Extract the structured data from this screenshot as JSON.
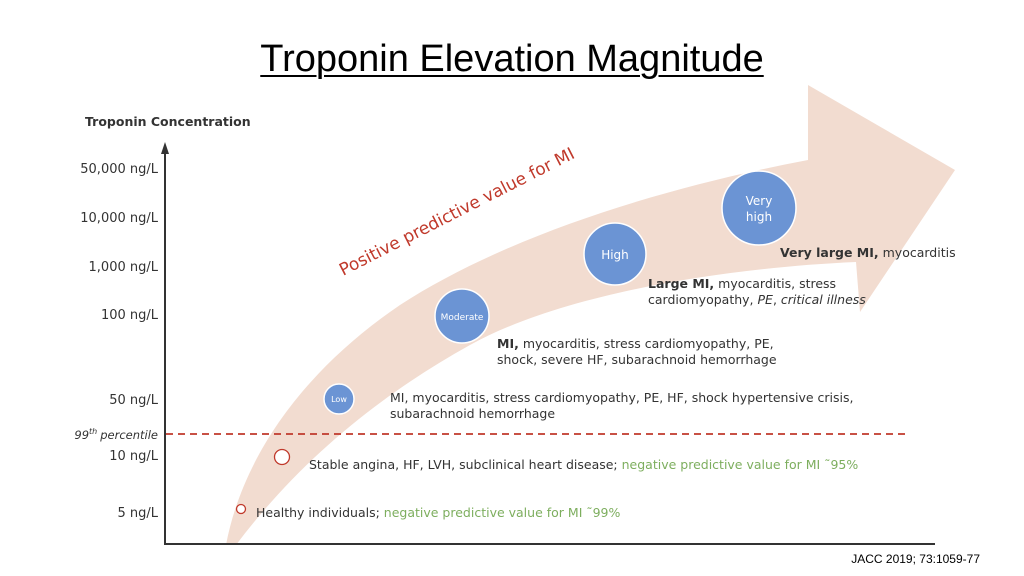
{
  "title": "Troponin Elevation Magnitude",
  "axis_title": "Troponin Concentration",
  "ticks": [
    "50,000 ng/L",
    "10,000 ng/L",
    "1,000 ng/L",
    "100 ng/L",
    "50 ng/L",
    "10 ng/L",
    "5 ng/L"
  ],
  "percentile_label": {
    "num": "99",
    "sup": "th",
    "text": "percentile"
  },
  "arrow_label": "Positive predictive value for MI",
  "levels": [
    {
      "label": "Low"
    },
    {
      "label": "Moderate"
    },
    {
      "label": "High"
    },
    {
      "label_line1": "Very",
      "label_line2": "high"
    }
  ],
  "descriptions": {
    "very_high": {
      "bold": "Very large MI,",
      "rest": " myocarditis"
    },
    "high": {
      "bold": "Large MI,",
      "rest1": " myocarditis, stress",
      "line2a": "cardiomyopathy, ",
      "line2b": "PE",
      "line2c": ", ",
      "line2d": "critical illness"
    },
    "moderate": {
      "bold": "MI,",
      "rest1": " myocarditis, stress cardiomyopathy, PE,",
      "line2": "shock, severe HF, subarachnoid hemorrhage"
    },
    "low": {
      "line1": "MI, myocarditis, stress cardiomyopathy, PE, HF, shock hypertensive crisis,",
      "line2": "subarachnoid hemorrhage"
    },
    "stable": {
      "text": "Stable angina, HF, LVH, subclinical heart disease; ",
      "green": "negative predictive value for MI ˜95%"
    },
    "healthy": {
      "text": "Healthy individuals; ",
      "green": "negative predictive value for MI ˜99%"
    }
  },
  "citation": "JACC 2019; 73:1059-77",
  "colors": {
    "arrow": "#f2dcd0",
    "circle": "#6b94d4",
    "red": "#c0392b",
    "green": "#7dae5e",
    "axis": "#333333"
  }
}
